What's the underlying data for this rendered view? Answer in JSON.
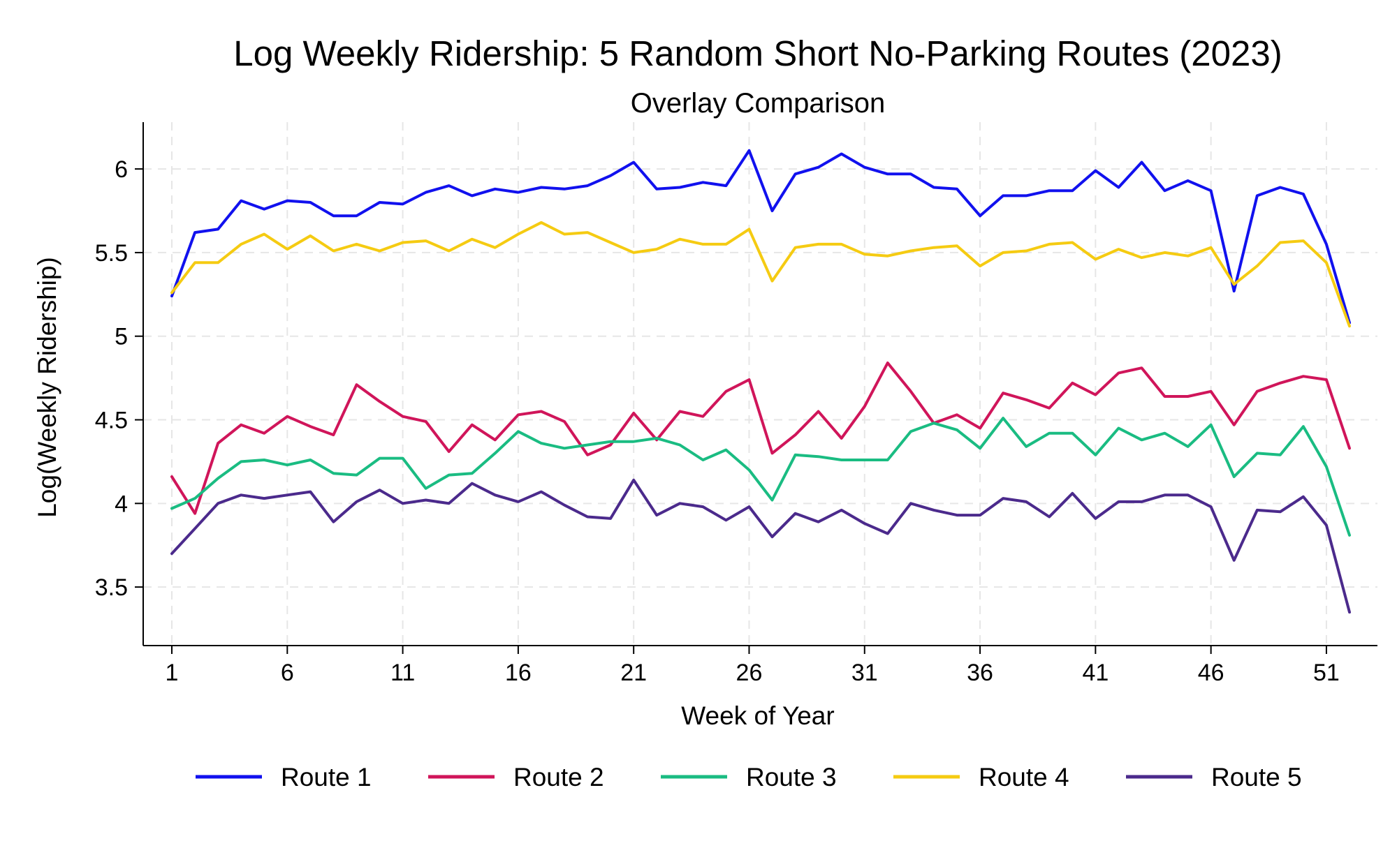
{
  "chart_data": {
    "type": "line",
    "title": "Log Weekly Ridership: 5 Random Short No-Parking Routes (2023)",
    "subtitle": "Overlay Comparison",
    "xlabel": "Week of Year",
    "ylabel": "Log(Weekly Ridership)",
    "xlim": [
      1,
      52
    ],
    "ylim": [
      3.15,
      6.28
    ],
    "x_ticks": [
      1,
      6,
      11,
      16,
      21,
      26,
      31,
      36,
      41,
      46,
      51
    ],
    "y_ticks": [
      3.5,
      4,
      4.5,
      5,
      5.5,
      6
    ],
    "grid": true,
    "legend_position": "bottom",
    "x": [
      1,
      2,
      3,
      4,
      5,
      6,
      7,
      8,
      9,
      10,
      11,
      12,
      13,
      14,
      15,
      16,
      17,
      18,
      19,
      20,
      21,
      22,
      23,
      24,
      25,
      26,
      27,
      28,
      29,
      30,
      31,
      32,
      33,
      34,
      35,
      36,
      37,
      38,
      39,
      40,
      41,
      42,
      43,
      44,
      45,
      46,
      47,
      48,
      49,
      50,
      51,
      52
    ],
    "series": [
      {
        "name": "Route 1",
        "color": "#1111ee",
        "values": [
          5.24,
          5.62,
          5.64,
          5.81,
          5.76,
          5.81,
          5.8,
          5.72,
          5.72,
          5.8,
          5.79,
          5.86,
          5.9,
          5.84,
          5.88,
          5.86,
          5.89,
          5.88,
          5.9,
          5.96,
          6.04,
          5.88,
          5.89,
          5.92,
          5.9,
          6.11,
          5.75,
          5.97,
          6.01,
          6.09,
          6.01,
          5.97,
          5.97,
          5.89,
          5.88,
          5.72,
          5.84,
          5.84,
          5.87,
          5.87,
          5.99,
          5.89,
          6.04,
          5.87,
          5.93,
          5.87,
          5.27,
          5.84,
          5.89,
          5.85,
          5.55,
          5.08
        ]
      },
      {
        "name": "Route 2",
        "color": "#d0155a",
        "values": [
          4.16,
          3.94,
          4.36,
          4.47,
          4.42,
          4.52,
          4.46,
          4.41,
          4.71,
          4.61,
          4.52,
          4.49,
          4.31,
          4.47,
          4.38,
          4.53,
          4.55,
          4.49,
          4.29,
          4.35,
          4.54,
          4.38,
          4.55,
          4.52,
          4.67,
          4.74,
          4.3,
          4.41,
          4.55,
          4.39,
          4.58,
          4.84,
          4.67,
          4.48,
          4.53,
          4.45,
          4.66,
          4.62,
          4.57,
          4.72,
          4.65,
          4.78,
          4.81,
          4.64,
          4.64,
          4.67,
          4.47,
          4.67,
          4.72,
          4.76,
          4.74,
          4.33
        ]
      },
      {
        "name": "Route 3",
        "color": "#1abc82",
        "values": [
          3.97,
          4.03,
          4.15,
          4.25,
          4.26,
          4.23,
          4.26,
          4.18,
          4.17,
          4.27,
          4.27,
          4.09,
          4.17,
          4.18,
          4.3,
          4.43,
          4.36,
          4.33,
          4.35,
          4.37,
          4.37,
          4.39,
          4.35,
          4.26,
          4.32,
          4.2,
          4.02,
          4.29,
          4.28,
          4.26,
          4.26,
          4.26,
          4.43,
          4.48,
          4.44,
          4.33,
          4.51,
          4.34,
          4.42,
          4.42,
          4.29,
          4.45,
          4.38,
          4.42,
          4.34,
          4.47,
          4.16,
          4.3,
          4.29,
          4.46,
          4.22,
          3.81
        ]
      },
      {
        "name": "Route 4",
        "color": "#f5cb12",
        "values": [
          5.26,
          5.44,
          5.44,
          5.55,
          5.61,
          5.52,
          5.6,
          5.51,
          5.55,
          5.51,
          5.56,
          5.57,
          5.51,
          5.58,
          5.53,
          5.61,
          5.68,
          5.61,
          5.62,
          5.56,
          5.5,
          5.52,
          5.58,
          5.55,
          5.55,
          5.64,
          5.33,
          5.53,
          5.55,
          5.55,
          5.49,
          5.48,
          5.51,
          5.53,
          5.54,
          5.42,
          5.5,
          5.51,
          5.55,
          5.56,
          5.46,
          5.52,
          5.47,
          5.5,
          5.48,
          5.53,
          5.31,
          5.42,
          5.56,
          5.57,
          5.44,
          5.06
        ]
      },
      {
        "name": "Route 5",
        "color": "#4b2a8c",
        "values": [
          3.7,
          3.85,
          4.0,
          4.05,
          4.03,
          4.05,
          4.07,
          3.89,
          4.01,
          4.08,
          4.0,
          4.02,
          4.0,
          4.12,
          4.05,
          4.01,
          4.07,
          3.99,
          3.92,
          3.91,
          4.14,
          3.93,
          4.0,
          3.98,
          3.9,
          3.98,
          3.8,
          3.94,
          3.89,
          3.96,
          3.88,
          3.82,
          4.0,
          3.96,
          3.93,
          3.93,
          4.03,
          4.01,
          3.92,
          4.06,
          3.91,
          4.01,
          4.01,
          4.05,
          4.05,
          3.98,
          3.66,
          3.96,
          3.95,
          4.04,
          3.87,
          3.35
        ]
      }
    ]
  }
}
